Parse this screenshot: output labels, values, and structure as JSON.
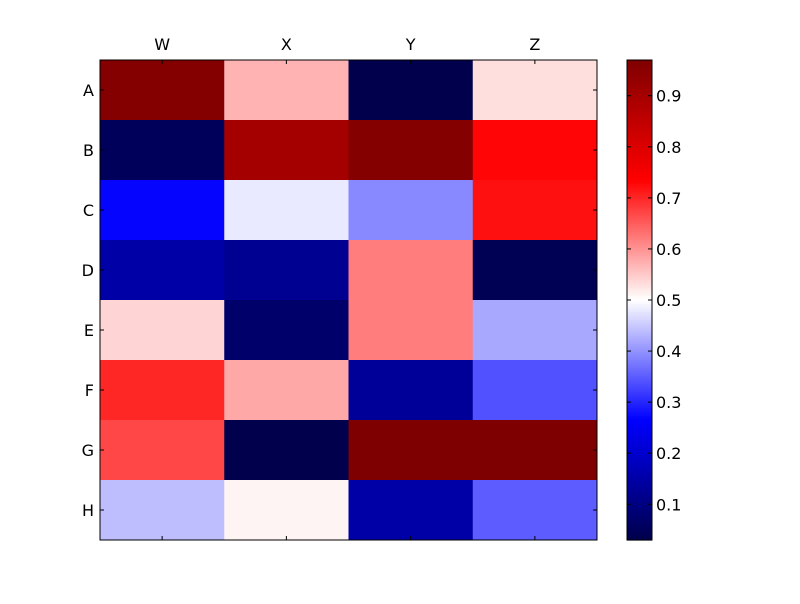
{
  "chart_data": {
    "type": "heatmap",
    "title": "",
    "xlabel": "",
    "ylabel": "",
    "columns": [
      "W",
      "X",
      "Y",
      "Z"
    ],
    "rows": [
      "A",
      "B",
      "C",
      "D",
      "E",
      "F",
      "G",
      "H"
    ],
    "values": [
      [
        0.96,
        0.57,
        0.03,
        0.53
      ],
      [
        0.05,
        0.9,
        0.96,
        0.73
      ],
      [
        0.27,
        0.48,
        0.39,
        0.72
      ],
      [
        0.15,
        0.12,
        0.62,
        0.04
      ],
      [
        0.54,
        0.07,
        0.62,
        0.42
      ],
      [
        0.7,
        0.58,
        0.13,
        0.34
      ],
      [
        0.67,
        0.03,
        0.97,
        0.97
      ],
      [
        0.44,
        0.51,
        0.15,
        0.35
      ]
    ],
    "colormap": "seismic",
    "colormap_stops": [
      "#00004c",
      "#0000ff",
      "#ffffff",
      "#ff0000",
      "#7f0000"
    ],
    "colorbar": {
      "vmin": 0.03,
      "vmax": 0.97,
      "ticks": [
        0.1,
        0.2,
        0.3,
        0.4,
        0.5,
        0.6,
        0.7,
        0.8,
        0.9
      ],
      "tick_labels": [
        "0.1",
        "0.2",
        "0.3",
        "0.4",
        "0.5",
        "0.6",
        "0.7",
        "0.8",
        "0.9"
      ],
      "position": "right"
    },
    "x_ticks_position": "top",
    "grid": false
  }
}
